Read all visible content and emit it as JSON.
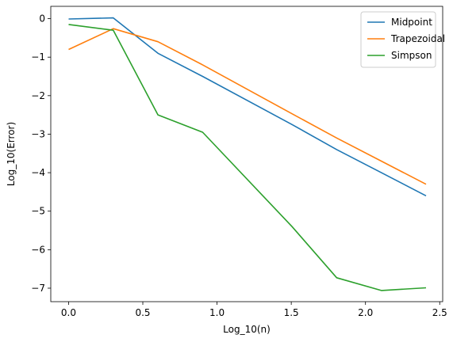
{
  "chart_data": {
    "type": "line",
    "title": "",
    "xlabel": "Log_10(n)",
    "ylabel": "Log_10(Error)",
    "xlim": [
      -0.12,
      2.52
    ],
    "ylim": [
      -7.35,
      0.32
    ],
    "xticks": [
      0.0,
      0.5,
      1.0,
      1.5,
      2.0,
      2.5
    ],
    "xtick_labels": [
      "0.0",
      "0.5",
      "1.0",
      "1.5",
      "2.0",
      "2.5"
    ],
    "yticks": [
      0,
      -1,
      -2,
      -3,
      -4,
      -5,
      -6,
      -7
    ],
    "ytick_labels": [
      "0",
      "−1",
      "−2",
      "−3",
      "−4",
      "−5",
      "−6",
      "−7"
    ],
    "grid": false,
    "legend_position": "top-right",
    "series": [
      {
        "name": "Midpoint",
        "color": "#1f77b4",
        "x": [
          0.0,
          0.301,
          0.602,
          0.903,
          1.505,
          1.806,
          2.107,
          2.408
        ],
        "y": [
          -0.01,
          0.02,
          -0.9,
          -1.5,
          -2.75,
          -3.4,
          -4.0,
          -4.6
        ]
      },
      {
        "name": "Trapezoidal",
        "color": "#ff7f0e",
        "x": [
          0.0,
          0.301,
          0.602,
          0.903,
          1.505,
          1.806,
          2.107,
          2.408
        ],
        "y": [
          -0.8,
          -0.26,
          -0.6,
          -1.2,
          -2.47,
          -3.1,
          -3.7,
          -4.3
        ]
      },
      {
        "name": "Simpson",
        "color": "#2ca02c",
        "x": [
          0.0,
          0.301,
          0.602,
          0.903,
          1.505,
          1.806,
          2.107,
          2.408
        ],
        "y": [
          -0.15,
          -0.3,
          -2.5,
          -2.95,
          -5.4,
          -6.73,
          -7.06,
          -6.99
        ]
      }
    ]
  }
}
